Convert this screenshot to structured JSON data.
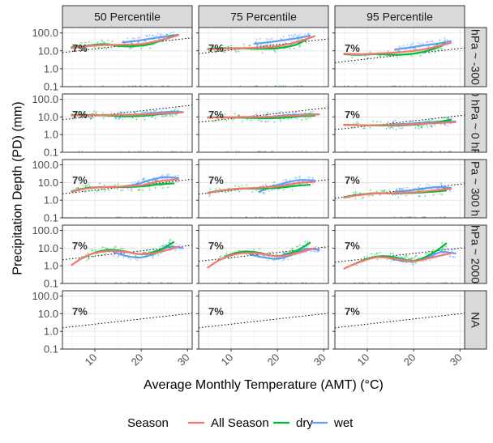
{
  "chart_data": {
    "type": "scatter",
    "xlabel": "Average Monthly Temperature (AMT) (°C)",
    "ylabel": "Precipitation Depth (PD) (mm)",
    "y_scale": "log10",
    "ylim": [
      0.1,
      200
    ],
    "xlim": [
      3,
      31
    ],
    "x_ticks": [
      10,
      20,
      30
    ],
    "y_ticks": [
      0.1,
      1.0,
      10.0,
      100.0
    ],
    "y_tick_labels": [
      "0.1",
      "1.0",
      "10.0",
      "100.0"
    ],
    "x_tick_labels": [
      "10",
      "20",
      "30"
    ],
    "col_facets": [
      "50 Percentile",
      "75 Percentile",
      "95 Percentile"
    ],
    "row_facets": [
      "hPa ~ -300",
      "0 hPa ~ 0 hP",
      "Pa ~ 300 h",
      "hPa ~ 2000",
      "NA"
    ],
    "annotation": "7%",
    "reference_line": {
      "style": "dotted",
      "rate_per_degC": 0.07
    },
    "legend": {
      "title": "Season",
      "position": "bottom",
      "entries": [
        {
          "name": "All Season",
          "color": "#F8766D"
        },
        {
          "name": "dry",
          "color": "#00BA38"
        },
        {
          "name": "wet",
          "color": "#619CFF"
        }
      ]
    },
    "ref_line_start": [
      [
        8,
        7,
        2.2
      ],
      [
        7,
        5,
        1.9
      ],
      [
        2.3,
        2.2,
        1.3
      ],
      [
        2.2,
        1.8,
        1.6
      ],
      [
        1.6,
        1.6,
        1.6
      ]
    ],
    "panels": [
      [
        {
          "series": [
            {
              "name": "All Season",
              "x": [
                5,
                8,
                12,
                16,
                20,
                24,
                28
              ],
              "y": [
                14,
                18,
                21,
                22,
                24,
                38,
                75
              ]
            },
            {
              "name": "dry",
              "x": [
                5,
                8,
                12,
                15,
                18,
                22,
                27
              ],
              "y": [
                16,
                19,
                24,
                19,
                18,
                24,
                70
              ]
            },
            {
              "name": "wet",
              "x": [
                16,
                19,
                22,
                25,
                28
              ],
              "y": [
                30,
                36,
                48,
                62,
                80
              ]
            }
          ]
        },
        {
          "series": [
            {
              "name": "All Season",
              "x": [
                5,
                8,
                12,
                16,
                20,
                24,
                28
              ],
              "y": [
                12,
                13,
                14,
                15,
                18,
                30,
                65
              ]
            },
            {
              "name": "dry",
              "x": [
                5,
                8,
                12,
                16,
                20,
                24,
                27
              ],
              "y": [
                13,
                14,
                14,
                13,
                14,
                22,
                55
              ]
            },
            {
              "name": "wet",
              "x": [
                15,
                18,
                21,
                24,
                27
              ],
              "y": [
                25,
                30,
                38,
                50,
                70
              ]
            }
          ]
        },
        {
          "series": [
            {
              "name": "All Season",
              "x": [
                5,
                8,
                12,
                16,
                20,
                24,
                28
              ],
              "y": [
                7,
                6.5,
                7,
                8,
                10,
                15,
                28
              ]
            },
            {
              "name": "dry",
              "x": [
                5,
                8,
                12,
                16,
                20,
                24,
                27
              ],
              "y": [
                6.5,
                6,
                6.5,
                6,
                7,
                12,
                25
              ]
            },
            {
              "name": "wet",
              "x": [
                16,
                19,
                22,
                25,
                28
              ],
              "y": [
                12,
                15,
                20,
                25,
                35
              ]
            }
          ]
        }
      ],
      [
        {
          "series": [
            {
              "name": "All Season",
              "x": [
                5,
                9,
                13,
                17,
                21,
                25,
                29
              ],
              "y": [
                12,
                12.5,
                13,
                13,
                14,
                16,
                18
              ]
            },
            {
              "name": "dry",
              "x": [
                5,
                9,
                13,
                17,
                21,
                25,
                28
              ],
              "y": [
                13,
                13,
                12,
                11,
                12,
                15,
                17
              ]
            },
            {
              "name": "wet",
              "x": [
                15,
                18,
                21,
                24,
                27,
                29
              ],
              "y": [
                12,
                13,
                15,
                18,
                20,
                19
              ]
            }
          ]
        },
        {
          "series": [
            {
              "name": "All Season",
              "x": [
                5,
                9,
                13,
                17,
                21,
                25,
                29
              ],
              "y": [
                9,
                9.5,
                10,
                10,
                11,
                12.5,
                14
              ]
            },
            {
              "name": "dry",
              "x": [
                5,
                9,
                13,
                17,
                21,
                25,
                28
              ],
              "y": [
                9.5,
                9.5,
                9,
                8.5,
                9,
                11,
                12
              ]
            },
            {
              "name": "wet",
              "x": [
                15,
                18,
                21,
                24,
                27,
                29
              ],
              "y": [
                9,
                10,
                12,
                13,
                14,
                14
              ]
            }
          ]
        },
        {
          "series": [
            {
              "name": "All Season",
              "x": [
                5,
                9,
                13,
                17,
                21,
                25,
                29
              ],
              "y": [
                3.5,
                3.4,
                3.5,
                3.6,
                4,
                4.5,
                5
              ]
            },
            {
              "name": "dry",
              "x": [
                5,
                9,
                13,
                17,
                21,
                25,
                28
              ],
              "y": [
                3.6,
                3.4,
                3.3,
                3.3,
                3.8,
                5,
                7
              ]
            },
            {
              "name": "wet",
              "x": [
                15,
                18,
                21,
                24,
                27,
                29
              ],
              "y": [
                3.8,
                4,
                4.5,
                5,
                5.5,
                5.5
              ]
            }
          ]
        }
      ],
      [
        {
          "series": [
            {
              "name": "All Season",
              "x": [
                5,
                8,
                12,
                16,
                20,
                24,
                28
              ],
              "y": [
                3,
                4.5,
                5.5,
                6,
                7,
                12,
                15
              ]
            },
            {
              "name": "dry",
              "x": [
                5,
                8,
                12,
                16,
                20,
                24,
                27
              ],
              "y": [
                3.2,
                4.8,
                5.5,
                5.5,
                6,
                8,
                9
              ]
            },
            {
              "name": "wet",
              "x": [
                16,
                19,
                22,
                25,
                28
              ],
              "y": [
                6,
                8,
                14,
                20,
                18
              ]
            }
          ]
        },
        {
          "series": [
            {
              "name": "All Season",
              "x": [
                5,
                8,
                12,
                16,
                20,
                24,
                28
              ],
              "y": [
                2.5,
                3.5,
                4.5,
                5,
                6,
                9,
                11
              ]
            },
            {
              "name": "dry",
              "x": [
                5,
                8,
                12,
                16,
                20,
                24,
                27
              ],
              "y": [
                2.6,
                3.6,
                4.5,
                4.5,
                5,
                6.5,
                7.5
              ]
            },
            {
              "name": "wet",
              "x": [
                16,
                19,
                22,
                25,
                28
              ],
              "y": [
                3,
                6,
                10,
                14,
                13
              ]
            }
          ]
        },
        {
          "series": [
            {
              "name": "All Season",
              "x": [
                5,
                8,
                12,
                16,
                20,
                24,
                28
              ],
              "y": [
                1.4,
                1.9,
                2.4,
                2.5,
                2.8,
                3.5,
                4.5
              ]
            },
            {
              "name": "dry",
              "x": [
                5,
                8,
                12,
                16,
                20,
                24,
                27
              ],
              "y": [
                1.5,
                2,
                2.5,
                2.4,
                2.6,
                3,
                3.5
              ]
            },
            {
              "name": "wet",
              "x": [
                16,
                19,
                22,
                25,
                28
              ],
              "y": [
                3,
                3.5,
                4.5,
                5.5,
                5
              ]
            }
          ]
        }
      ],
      [
        {
          "series": [
            {
              "name": "All Season",
              "x": [
                5,
                8,
                12,
                16,
                20,
                24,
                28
              ],
              "y": [
                1.1,
                3.5,
                6.5,
                6.5,
                4.5,
                6,
                12
              ]
            },
            {
              "name": "dry",
              "x": [
                7,
                10,
                13,
                16,
                20,
                24,
                27
              ],
              "y": [
                2.5,
                5.5,
                8,
                7,
                4.5,
                8,
                22
              ]
            },
            {
              "name": "wet",
              "x": [
                14,
                17,
                20,
                23,
                26,
                29
              ],
              "y": [
                6,
                3.5,
                3,
                5,
                12,
                10
              ]
            }
          ]
        },
        {
          "series": [
            {
              "name": "All Season",
              "x": [
                5,
                8,
                12,
                16,
                20,
                24,
                28
              ],
              "y": [
                0.8,
                2.5,
                5,
                5,
                3.5,
                5,
                10
              ]
            },
            {
              "name": "dry",
              "x": [
                7,
                10,
                13,
                16,
                20,
                24,
                27
              ],
              "y": [
                1.8,
                4.5,
                6.5,
                5.5,
                3.5,
                7,
                20
              ]
            },
            {
              "name": "wet",
              "x": [
                14,
                17,
                20,
                23,
                26,
                29
              ],
              "y": [
                4.5,
                3,
                2.5,
                4,
                9,
                8
              ]
            }
          ]
        },
        {
          "series": [
            {
              "name": "All Season",
              "x": [
                5,
                8,
                12,
                16,
                20,
                24,
                28
              ],
              "y": [
                0.7,
                1.5,
                3,
                2.5,
                1.8,
                3,
                5
              ]
            },
            {
              "name": "dry",
              "x": [
                7,
                10,
                13,
                16,
                20,
                24,
                27
              ],
              "y": [
                1.2,
                2.5,
                3.5,
                3,
                1.9,
                5,
                18
              ]
            },
            {
              "name": "wet",
              "x": [
                14,
                17,
                20,
                23,
                26,
                29
              ],
              "y": [
                3,
                2,
                1.8,
                3,
                6,
                5
              ]
            }
          ]
        }
      ],
      [
        {
          "series": []
        },
        {
          "series": []
        },
        {
          "series": []
        }
      ]
    ]
  }
}
